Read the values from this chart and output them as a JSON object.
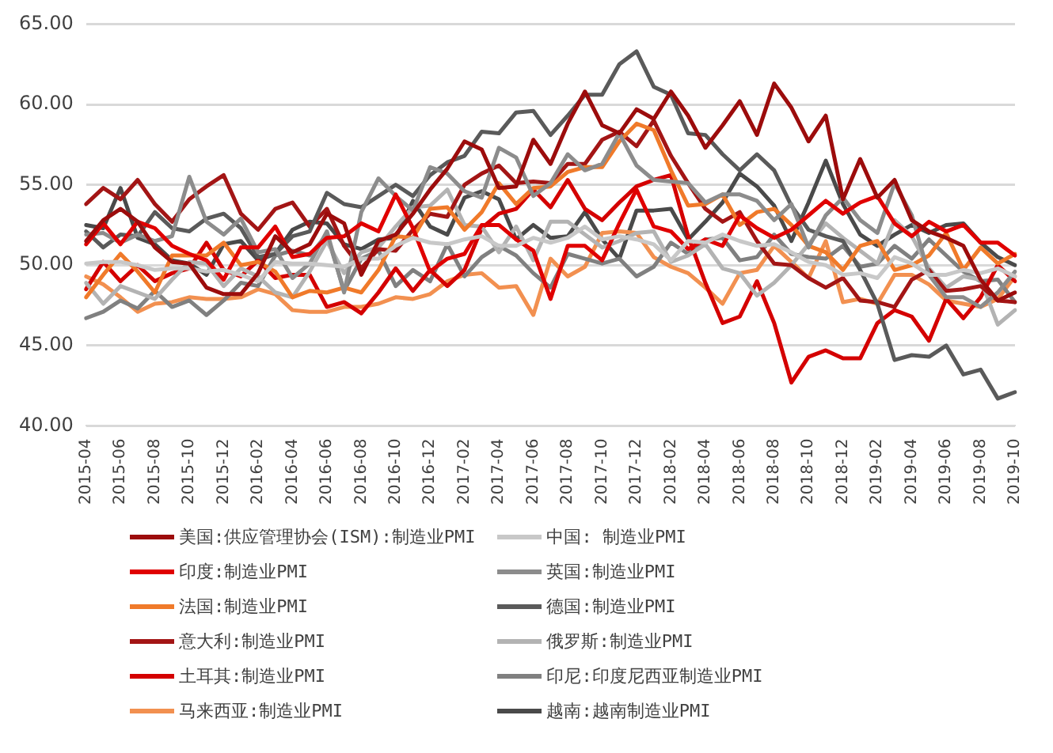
{
  "chart_data": {
    "type": "line",
    "categories": [
      "2015-04",
      null,
      "2015-06",
      null,
      "2015-08",
      null,
      "2015-10",
      null,
      "2015-12",
      null,
      "2016-02",
      null,
      "2016-04",
      null,
      "2016-06",
      null,
      "2016-08",
      null,
      "2016-10",
      null,
      "2016-12",
      null,
      "2017-02",
      null,
      "2017-04",
      null,
      "2017-06",
      null,
      "2017-08",
      null,
      "2017-10",
      null,
      "2017-12",
      null,
      "2018-02",
      null,
      "2018-04",
      null,
      "2018-06",
      null,
      "2018-08",
      null,
      "2018-10",
      null,
      "2018-12",
      null,
      "2019-02",
      null,
      "2019-04",
      null,
      "2019-06",
      null,
      "2019-08",
      null,
      "2019-10"
    ],
    "series": [
      {
        "name": "美国:供应管理协会(ISM):制造业PMI",
        "color": "#9c0c0c",
        "values": [
          51.5,
          52.8,
          53.5,
          52.7,
          51.1,
          50.2,
          50.1,
          48.6,
          48.2,
          48.2,
          49.5,
          51.8,
          50.8,
          51.3,
          53.2,
          52.6,
          49.4,
          51.5,
          51.9,
          53.2,
          54.7,
          56.0,
          57.7,
          57.2,
          54.8,
          54.9,
          57.8,
          56.3,
          58.8,
          60.8,
          58.7,
          58.2,
          59.7,
          59.1,
          60.8,
          59.3,
          57.3,
          58.7,
          60.2,
          58.1,
          61.3,
          59.8,
          57.7,
          59.3,
          54.1,
          56.6,
          54.2,
          55.3,
          52.8,
          52.1,
          51.7,
          51.2,
          49.1,
          47.8,
          48.3
        ]
      },
      {
        "name": "中国: 制造业PMI",
        "color": "#c8c8c8",
        "values": [
          50.1,
          50.2,
          50.2,
          50.0,
          49.7,
          49.8,
          49.8,
          49.6,
          49.7,
          49.4,
          49.0,
          50.2,
          50.1,
          50.1,
          50.0,
          49.9,
          50.4,
          50.4,
          51.2,
          51.7,
          51.4,
          51.3,
          51.6,
          51.8,
          51.2,
          51.2,
          51.7,
          51.4,
          51.7,
          52.4,
          51.6,
          51.8,
          51.6,
          51.3,
          50.3,
          51.5,
          51.4,
          51.9,
          51.5,
          51.2,
          51.3,
          50.8,
          50.2,
          50.0,
          49.4,
          49.5,
          49.2,
          50.5,
          50.1,
          49.4,
          49.4,
          49.7,
          49.5,
          49.8,
          49.3
        ]
      },
      {
        "name": "印度:制造业PMI",
        "color": "#e00000",
        "values": [
          51.3,
          52.6,
          51.3,
          52.7,
          52.3,
          51.2,
          50.7,
          50.3,
          49.1,
          51.1,
          51.1,
          52.4,
          50.5,
          50.7,
          51.7,
          51.8,
          52.6,
          52.1,
          54.4,
          52.3,
          49.6,
          50.4,
          50.7,
          52.5,
          52.5,
          51.6,
          50.9,
          47.9,
          51.2,
          51.2,
          50.3,
          52.6,
          54.7,
          52.4,
          52.1,
          51.0,
          51.6,
          51.2,
          53.1,
          52.3,
          51.7,
          52.2,
          53.1,
          54.0,
          53.2,
          53.9,
          54.3,
          52.6,
          51.8,
          52.7,
          52.1,
          52.5,
          51.4,
          51.4,
          50.6
        ]
      },
      {
        "name": "英国:制造业PMI",
        "color": "#8c8c8c",
        "values": [
          51.9,
          52.0,
          51.4,
          51.9,
          51.5,
          51.8,
          55.5,
          52.7,
          51.9,
          52.9,
          50.8,
          51.0,
          49.2,
          50.1,
          52.1,
          48.3,
          53.3,
          55.4,
          54.3,
          53.4,
          56.1,
          55.7,
          54.6,
          54.2,
          57.3,
          56.7,
          54.3,
          55.1,
          56.9,
          55.9,
          56.3,
          58.2,
          56.2,
          55.3,
          55.2,
          55.1,
          53.9,
          54.4,
          54.4,
          54.0,
          52.8,
          53.8,
          51.1,
          53.1,
          54.2,
          52.8,
          52.0,
          55.1,
          53.1,
          49.4,
          48.0,
          48.0,
          47.4,
          48.3,
          49.6
        ]
      },
      {
        "name": "法国:制造业PMI",
        "color": "#f07a2a",
        "values": [
          48.0,
          49.4,
          50.7,
          49.6,
          48.3,
          50.6,
          50.6,
          50.6,
          51.4,
          50.0,
          50.2,
          49.6,
          48.0,
          48.4,
          48.3,
          48.6,
          48.3,
          49.7,
          51.8,
          51.7,
          53.5,
          53.6,
          52.2,
          53.3,
          55.1,
          53.8,
          54.8,
          54.9,
          55.8,
          56.1,
          56.1,
          57.7,
          58.8,
          58.4,
          55.9,
          53.7,
          53.8,
          54.4,
          52.5,
          53.3,
          53.5,
          52.5,
          51.2,
          50.8,
          49.7,
          51.2,
          51.5,
          49.7,
          50.0,
          50.6,
          52.0,
          49.7,
          51.1,
          50.1,
          50.7
        ]
      },
      {
        "name": "德国:制造业PMI",
        "color": "#5a5a5a",
        "values": [
          52.1,
          51.1,
          51.9,
          51.8,
          53.3,
          52.3,
          52.1,
          52.9,
          53.2,
          52.3,
          50.5,
          50.7,
          51.8,
          52.1,
          54.5,
          53.8,
          53.6,
          54.3,
          55.0,
          54.3,
          55.6,
          56.4,
          56.8,
          58.3,
          58.2,
          59.5,
          59.6,
          58.1,
          59.3,
          60.6,
          60.6,
          62.5,
          63.3,
          61.1,
          60.6,
          58.2,
          58.1,
          56.9,
          55.9,
          56.9,
          55.9,
          53.7,
          52.2,
          51.8,
          51.5,
          49.7,
          47.6,
          44.1,
          44.4,
          44.3,
          45.0,
          43.2,
          43.5,
          41.7,
          42.1
        ]
      },
      {
        "name": "意大利:制造业PMI",
        "color": "#a31515",
        "values": [
          53.8,
          54.8,
          54.1,
          55.3,
          53.8,
          52.7,
          54.1,
          54.9,
          55.6,
          53.2,
          52.2,
          53.5,
          53.9,
          52.4,
          53.5,
          51.2,
          49.8,
          51.0,
          50.9,
          52.2,
          53.2,
          53.0,
          55.0,
          55.7,
          56.2,
          55.1,
          55.2,
          55.1,
          56.3,
          56.3,
          57.8,
          58.3,
          57.4,
          59.0,
          56.8,
          55.1,
          53.5,
          52.7,
          53.3,
          51.5,
          50.1,
          50.0,
          49.2,
          48.6,
          49.2,
          47.8,
          47.7,
          47.4,
          49.1,
          49.7,
          48.4,
          48.5,
          48.7,
          47.8,
          47.7
        ]
      },
      {
        "name": "俄罗斯:制造业PMI",
        "color": "#b3b3b3",
        "values": [
          48.9,
          47.6,
          48.7,
          48.3,
          47.9,
          49.1,
          50.2,
          50.1,
          48.7,
          49.8,
          49.3,
          48.3,
          48.0,
          49.6,
          51.5,
          49.5,
          50.8,
          51.1,
          52.4,
          53.6,
          53.7,
          54.7,
          52.5,
          52.4,
          50.8,
          52.4,
          50.3,
          52.7,
          52.7,
          51.9,
          51.1,
          51.5,
          52.0,
          52.1,
          50.2,
          50.6,
          51.3,
          49.8,
          49.5,
          48.1,
          48.9,
          50.0,
          51.3,
          52.6,
          51.7,
          50.9,
          50.1,
          52.8,
          51.8,
          49.8,
          48.6,
          49.3,
          49.1,
          46.3,
          47.2
        ]
      },
      {
        "name": "土耳其:制造业PMI",
        "color": "#d40000",
        "values": [
          48.5,
          50.2,
          49.0,
          50.0,
          49.0,
          49.5,
          49.8,
          51.4,
          49.7,
          49.3,
          50.3,
          49.2,
          49.4,
          49.4,
          47.4,
          47.7,
          47.0,
          48.3,
          49.8,
          48.4,
          49.7,
          48.7,
          49.7,
          52.3,
          53.2,
          53.5,
          54.7,
          53.6,
          55.3,
          53.5,
          52.8,
          53.9,
          54.9,
          55.3,
          55.6,
          51.8,
          48.9,
          46.4,
          46.8,
          49.0,
          46.4,
          42.7,
          44.3,
          44.7,
          44.2,
          44.2,
          46.4,
          47.2,
          46.8,
          45.3,
          47.9,
          46.7,
          48.0,
          50.0,
          49.0
        ]
      },
      {
        "name": "印尼:印度尼西亚制造业PMI",
        "color": "#808080",
        "values": [
          46.7,
          47.1,
          47.8,
          47.3,
          48.4,
          47.4,
          47.8,
          46.9,
          47.8,
          48.9,
          48.7,
          50.6,
          50.9,
          50.6,
          51.9,
          48.4,
          50.4,
          50.9,
          48.7,
          49.7,
          49.0,
          51.3,
          49.3,
          50.5,
          51.2,
          50.6,
          49.5,
          48.6,
          50.7,
          50.4,
          50.1,
          50.4,
          49.3,
          49.9,
          51.4,
          50.7,
          51.6,
          51.7,
          50.3,
          50.5,
          51.9,
          50.7,
          50.5,
          50.4,
          51.2,
          49.9,
          50.1,
          51.2,
          50.4,
          51.6,
          50.6,
          49.6,
          49.0,
          49.1,
          47.7
        ]
      },
      {
        "name": "马来西亚:制造业PMI",
        "color": "#f29050",
        "values": [
          49.3,
          48.8,
          48.0,
          47.1,
          47.6,
          47.7,
          48.0,
          47.9,
          47.9,
          48.0,
          48.5,
          48.2,
          47.2,
          47.1,
          47.1,
          47.4,
          47.4,
          47.6,
          48.0,
          47.9,
          48.2,
          49.0,
          49.4,
          49.5,
          48.6,
          48.7,
          46.9,
          50.4,
          49.3,
          49.9,
          52.0,
          52.1,
          52.0,
          50.5,
          49.9,
          49.5,
          48.6,
          47.6,
          49.5,
          49.7,
          51.2,
          50.2,
          49.2,
          51.5,
          47.7,
          47.9,
          47.6,
          49.4,
          49.4,
          48.8,
          47.8,
          47.6,
          47.4,
          47.9,
          49.3
        ]
      },
      {
        "name": "越南:越南制造业PMI",
        "color": "#4a4a4a",
        "values": [
          52.5,
          52.3,
          54.8,
          51.7,
          51.3,
          50.3,
          50.1,
          49.4,
          51.3,
          51.5,
          50.3,
          50.7,
          52.2,
          52.7,
          52.6,
          51.3,
          51.0,
          51.6,
          51.7,
          54.0,
          52.4,
          51.9,
          54.2,
          54.6,
          54.1,
          51.6,
          52.5,
          51.7,
          51.8,
          53.3,
          51.6,
          50.4,
          53.4,
          53.4,
          53.5,
          51.6,
          52.7,
          53.9,
          55.7,
          54.9,
          53.7,
          51.5,
          53.9,
          56.5,
          53.8,
          51.9,
          51.2,
          51.9,
          52.5,
          52.0,
          52.5,
          52.6,
          51.4,
          50.5,
          50.0
        ]
      }
    ],
    "ylim": [
      40,
      65
    ],
    "yticks": [
      {
        "value": 40,
        "label": "40.00"
      },
      {
        "value": 45,
        "label": "45.00"
      },
      {
        "value": 50,
        "label": "50.00"
      },
      {
        "value": 55,
        "label": "55.00"
      },
      {
        "value": 60,
        "label": "60.00"
      },
      {
        "value": 65,
        "label": "65.00"
      }
    ],
    "grid": "y",
    "legend": "bottom",
    "marker": "none",
    "line_style": "solid"
  }
}
